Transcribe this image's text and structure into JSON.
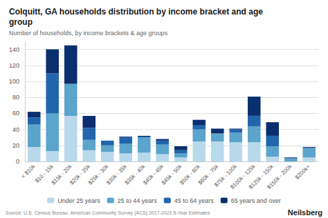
{
  "chart_data": {
    "type": "bar",
    "title": "Colquitt, GA households distribution by income bracket and age\ngroup",
    "subtitle": "Number of households, by income brackets & age groups",
    "source": "Source: U.S. Census Bureau, American Community Survey (ACS) 2017-2021 5-Year Estimates",
    "annotations": [
      "Neilsberg"
    ],
    "categories": [
      "< $10k",
      "$10 - 15k",
      "$15k - 20k",
      "$20k - 25k",
      "$25k - 30k",
      "$30k - 35k",
      "$35k - 40k",
      "$40k - 45k",
      "$45k - 50k",
      "$50k - 60k",
      "$60k - 75k",
      "$75k - 100k",
      "$100k - 125k",
      "$125k - 150k",
      "$150k - 200k",
      "$200k+"
    ],
    "series": [
      {
        "name": "Under 25 years",
        "color": "#b8d9ec",
        "values": [
          18,
          13,
          57,
          14,
          12,
          10,
          11,
          9,
          5,
          25,
          25,
          24,
          24,
          6,
          0,
          5
        ]
      },
      {
        "name": "25 to 44 years",
        "color": "#5ba4cb",
        "values": [
          28,
          47,
          40,
          13,
          8,
          12,
          19,
          12,
          5,
          15,
          10,
          12,
          20,
          13,
          4,
          12
        ]
      },
      {
        "name": "45 to 64 years",
        "color": "#2166ac",
        "values": [
          9,
          50,
          0,
          15,
          6,
          8,
          1,
          5,
          4,
          5,
          0,
          4,
          13,
          13,
          0,
          0
        ]
      },
      {
        "name": "65 years and over",
        "color": "#0a2e6e",
        "values": [
          7,
          30,
          48,
          15,
          0,
          1,
          1,
          2,
          5,
          7,
          6,
          1,
          24,
          17,
          1,
          1
        ]
      }
    ],
    "stacked": true,
    "ylim": [
      0,
      150
    ],
    "yticks": [
      0,
      20,
      40,
      60,
      80,
      100,
      120,
      140
    ],
    "grid": true,
    "legend": "bottom"
  }
}
